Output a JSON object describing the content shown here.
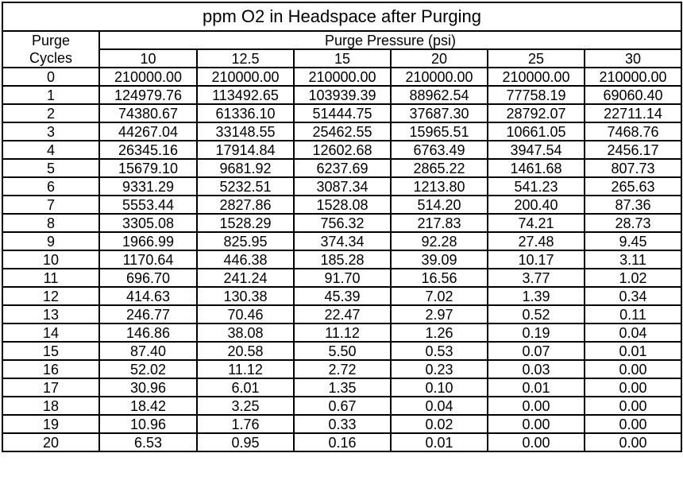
{
  "header": {
    "title": "ppm O2 in Headspace after Purging",
    "row_label": "Purge Cycles",
    "column_group": "Purge Pressure (psi)",
    "columns": [
      "10",
      "12.5",
      "15",
      "20",
      "25",
      "30"
    ]
  },
  "table": {
    "rows": [
      [
        "0",
        "210000.00",
        "210000.00",
        "210000.00",
        "210000.00",
        "210000.00",
        "210000.00"
      ],
      [
        "1",
        "124979.76",
        "113492.65",
        "103939.39",
        "88962.54",
        "77758.19",
        "69060.40"
      ],
      [
        "2",
        "74380.67",
        "61336.10",
        "51444.75",
        "37687.30",
        "28792.07",
        "22711.14"
      ],
      [
        "3",
        "44267.04",
        "33148.55",
        "25462.55",
        "15965.51",
        "10661.05",
        "7468.76"
      ],
      [
        "4",
        "26345.16",
        "17914.84",
        "12602.68",
        "6763.49",
        "3947.54",
        "2456.17"
      ],
      [
        "5",
        "15679.10",
        "9681.92",
        "6237.69",
        "2865.22",
        "1461.68",
        "807.73"
      ],
      [
        "6",
        "9331.29",
        "5232.51",
        "3087.34",
        "1213.80",
        "541.23",
        "265.63"
      ],
      [
        "7",
        "5553.44",
        "2827.86",
        "1528.08",
        "514.20",
        "200.40",
        "87.36"
      ],
      [
        "8",
        "3305.08",
        "1528.29",
        "756.32",
        "217.83",
        "74.21",
        "28.73"
      ],
      [
        "9",
        "1966.99",
        "825.95",
        "374.34",
        "92.28",
        "27.48",
        "9.45"
      ],
      [
        "10",
        "1170.64",
        "446.38",
        "185.28",
        "39.09",
        "10.17",
        "3.11"
      ],
      [
        "11",
        "696.70",
        "241.24",
        "91.70",
        "16.56",
        "3.77",
        "1.02"
      ],
      [
        "12",
        "414.63",
        "130.38",
        "45.39",
        "7.02",
        "1.39",
        "0.34"
      ],
      [
        "13",
        "246.77",
        "70.46",
        "22.47",
        "2.97",
        "0.52",
        "0.11"
      ],
      [
        "14",
        "146.86",
        "38.08",
        "11.12",
        "1.26",
        "0.19",
        "0.04"
      ],
      [
        "15",
        "87.40",
        "20.58",
        "5.50",
        "0.53",
        "0.07",
        "0.01"
      ],
      [
        "16",
        "52.02",
        "11.12",
        "2.72",
        "0.23",
        "0.03",
        "0.00"
      ],
      [
        "17",
        "30.96",
        "6.01",
        "1.35",
        "0.10",
        "0.01",
        "0.00"
      ],
      [
        "18",
        "18.42",
        "3.25",
        "0.67",
        "0.04",
        "0.00",
        "0.00"
      ],
      [
        "19",
        "10.96",
        "1.76",
        "0.33",
        "0.02",
        "0.00",
        "0.00"
      ],
      [
        "20",
        "6.53",
        "0.95",
        "0.16",
        "0.01",
        "0.00",
        "0.00"
      ]
    ]
  }
}
